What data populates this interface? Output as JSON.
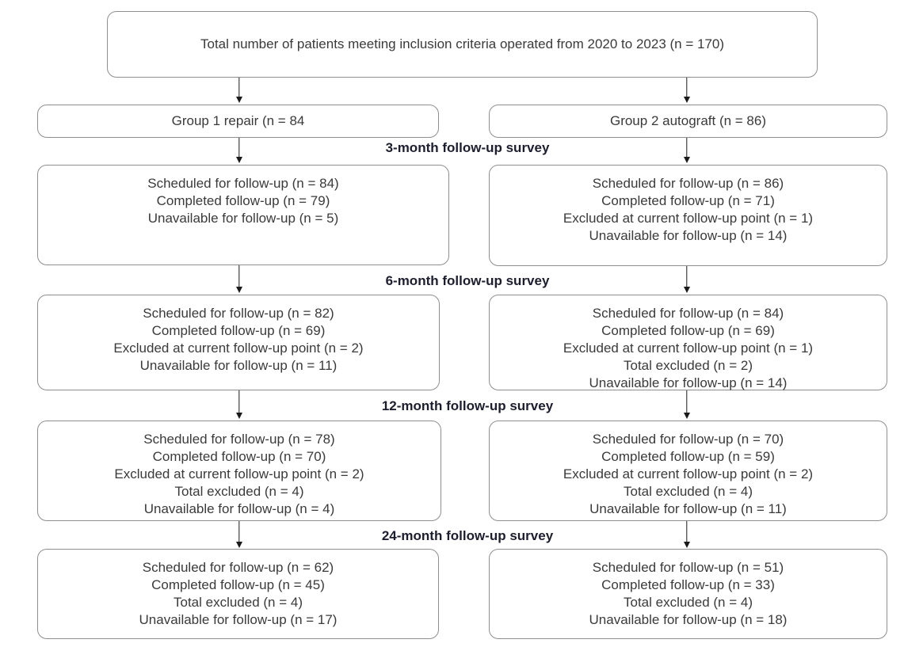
{
  "title_box": {
    "text": "Total number of patients meeting inclusion criteria operated from 2020 to 2023 (n = 170)"
  },
  "groups": {
    "left": {
      "label": "Group 1 repair (n = 84"
    },
    "right": {
      "label": "Group 2 autograft (n = 86)"
    }
  },
  "stages": [
    {
      "label": "3-month follow-up survey",
      "left": [
        "Scheduled for follow-up (n = 84)",
        "Completed follow-up (n = 79)",
        "Unavailable for follow-up (n = 5)"
      ],
      "right": [
        "Scheduled for follow-up (n = 86)",
        "Completed follow-up (n = 71)",
        "Excluded at current follow-up point (n = 1)",
        "Unavailable for follow-up (n = 14)"
      ]
    },
    {
      "label": "6-month follow-up survey",
      "left": [
        "Scheduled for follow-up (n = 82)",
        "Completed follow-up (n = 69)",
        "Excluded at current follow-up point (n = 2)",
        "Unavailable for follow-up (n = 11)"
      ],
      "right": [
        "Scheduled for follow-up (n = 84)",
        "Completed follow-up (n = 69)",
        "Excluded at current follow-up point (n = 1)",
        "Total excluded (n = 2)",
        "Unavailable for follow-up (n = 14)"
      ]
    },
    {
      "label": "12-month follow-up survey",
      "left": [
        "Scheduled for follow-up (n = 78)",
        "Completed follow-up (n = 70)",
        "Excluded at current follow-up point (n = 2)",
        "Total excluded (n = 4)",
        "Unavailable for follow-up (n = 4)"
      ],
      "right": [
        "Scheduled for follow-up (n = 70)",
        "Completed follow-up (n = 59)",
        "Excluded at current follow-up point (n = 2)",
        "Total excluded (n = 4)",
        "Unavailable for follow-up (n = 11)"
      ]
    },
    {
      "label": "24-month follow-up survey",
      "left": [
        "Scheduled for follow-up (n = 62)",
        "Completed follow-up (n = 45)",
        "Total excluded (n = 4)",
        "Unavailable for follow-up (n = 17)"
      ],
      "right": [
        "Scheduled for follow-up (n = 51)",
        "Completed follow-up (n = 33)",
        "Total excluded (n = 4)",
        "Unavailable for follow-up (n = 18)"
      ]
    }
  ],
  "colors": {
    "box_border": "#8e8e8e",
    "body_text": "#3a3a3a",
    "stage_label_text": "#1c1e2e",
    "arrow": "#1a1a1a",
    "background": "#ffffff"
  }
}
